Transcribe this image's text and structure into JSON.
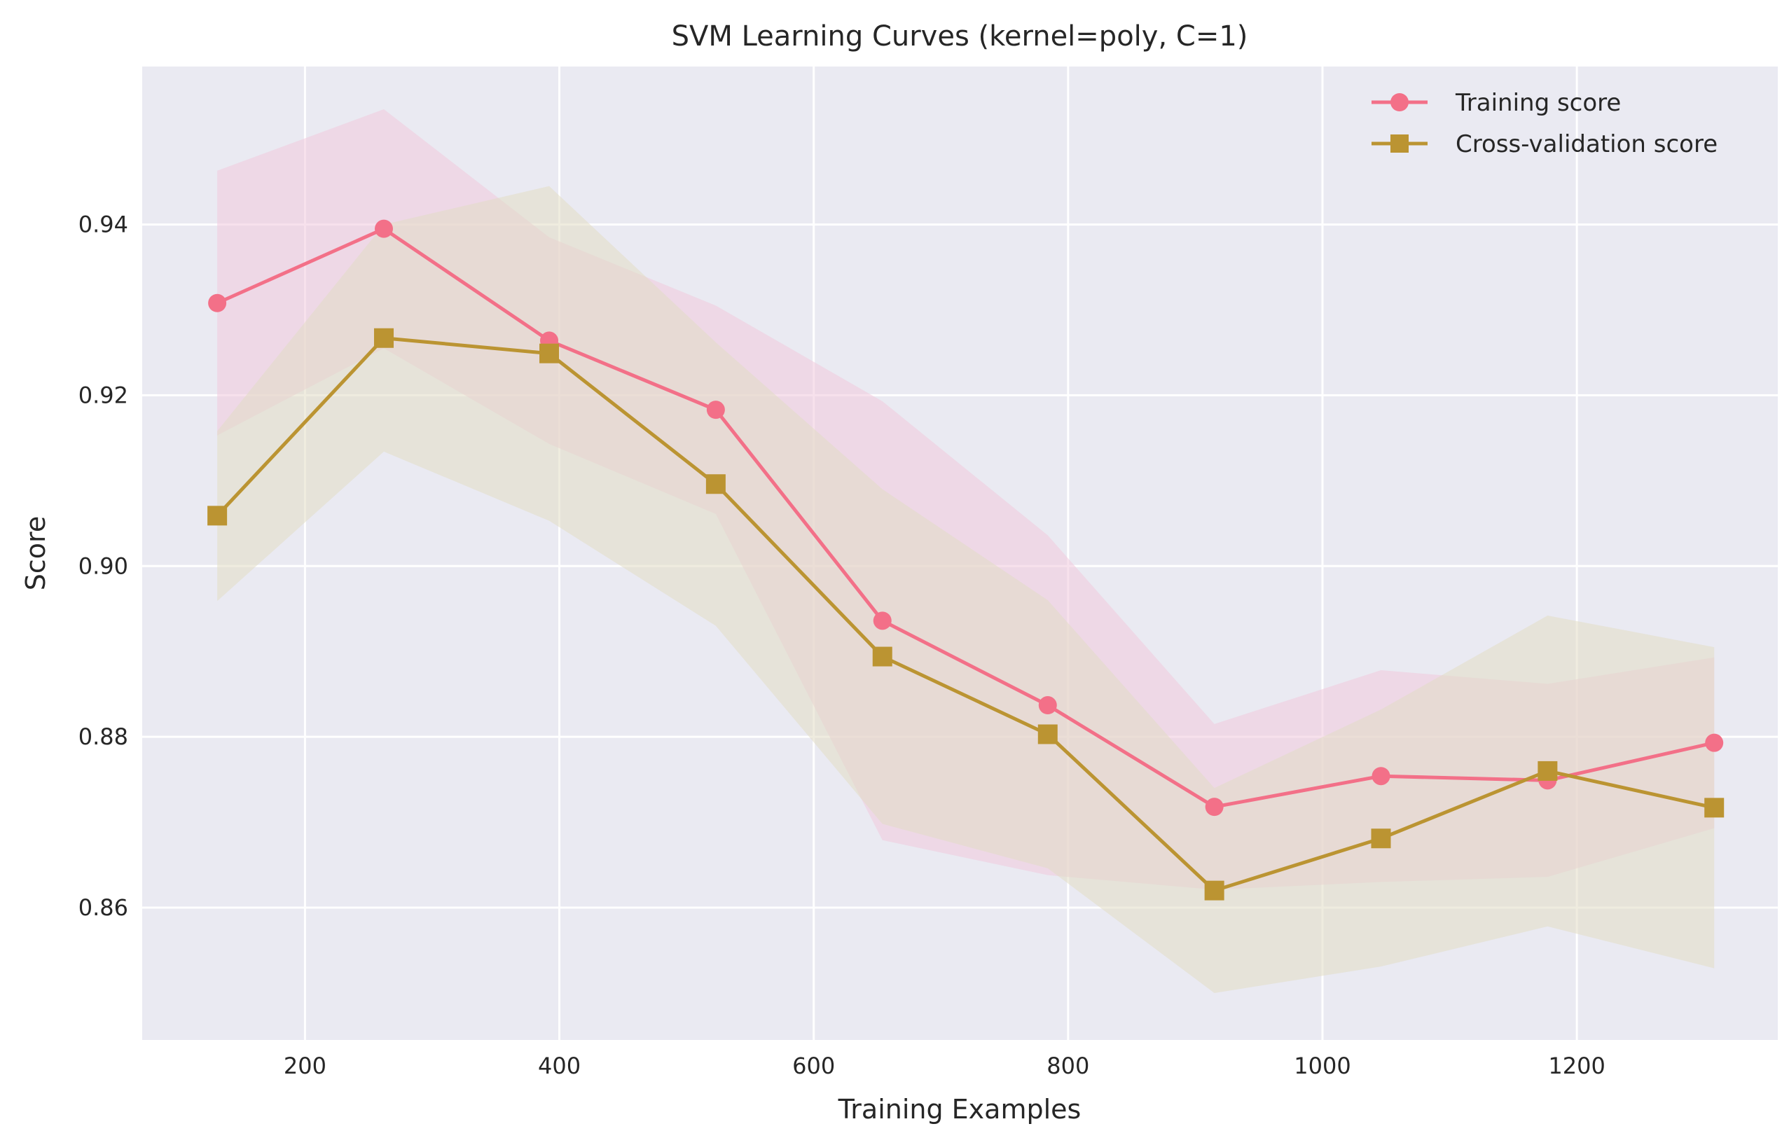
{
  "chart_data": {
    "type": "line",
    "title": "SVM Learning Curves (kernel=poly, C=1)",
    "xlabel": "Training Examples",
    "ylabel": "Score",
    "xlim": [
      72,
      1358
    ],
    "ylim": [
      0.8445,
      0.9585
    ],
    "xticks": [
      200,
      400,
      600,
      800,
      1000,
      1200
    ],
    "yticks": [
      0.86,
      0.88,
      0.9,
      0.92,
      0.94
    ],
    "xtick_labels": [
      "200",
      "400",
      "600",
      "800",
      "1000",
      "1200"
    ],
    "ytick_labels": [
      "0.86",
      "0.88",
      "0.90",
      "0.92",
      "0.94"
    ],
    "grid": true,
    "legend_position": "top-right",
    "x": [
      131,
      262,
      392,
      523,
      654,
      784,
      915,
      1046,
      1177,
      1308
    ],
    "series": [
      {
        "name": "Training score",
        "color": "#f37088",
        "marker": "circle",
        "values": [
          0.9308,
          0.9395,
          0.9264,
          0.9183,
          0.8936,
          0.8837,
          0.8718,
          0.8754,
          0.8749,
          0.8793
        ],
        "band_upper": [
          0.9463,
          0.9535,
          0.9385,
          0.9305,
          0.9193,
          0.9036,
          0.8815,
          0.8878,
          0.8862,
          0.8893
        ],
        "band_lower": [
          0.9153,
          0.9255,
          0.9143,
          0.9061,
          0.8679,
          0.8638,
          0.8621,
          0.863,
          0.8636,
          0.8693
        ],
        "band_color": "#f0c8dc"
      },
      {
        "name": "Cross-validation score",
        "color": "#bb9432",
        "marker": "square",
        "values": [
          0.9059,
          0.9267,
          0.9249,
          0.9096,
          0.8894,
          0.8803,
          0.862,
          0.8681,
          0.876,
          0.8717
        ],
        "band_upper": [
          0.9158,
          0.94,
          0.9445,
          0.9262,
          0.909,
          0.896,
          0.874,
          0.8832,
          0.8942,
          0.8905
        ],
        "band_lower": [
          0.8959,
          0.9134,
          0.9053,
          0.893,
          0.8698,
          0.8646,
          0.85,
          0.8531,
          0.8578,
          0.8529
        ],
        "band_color": "#e2dcc4"
      }
    ]
  }
}
